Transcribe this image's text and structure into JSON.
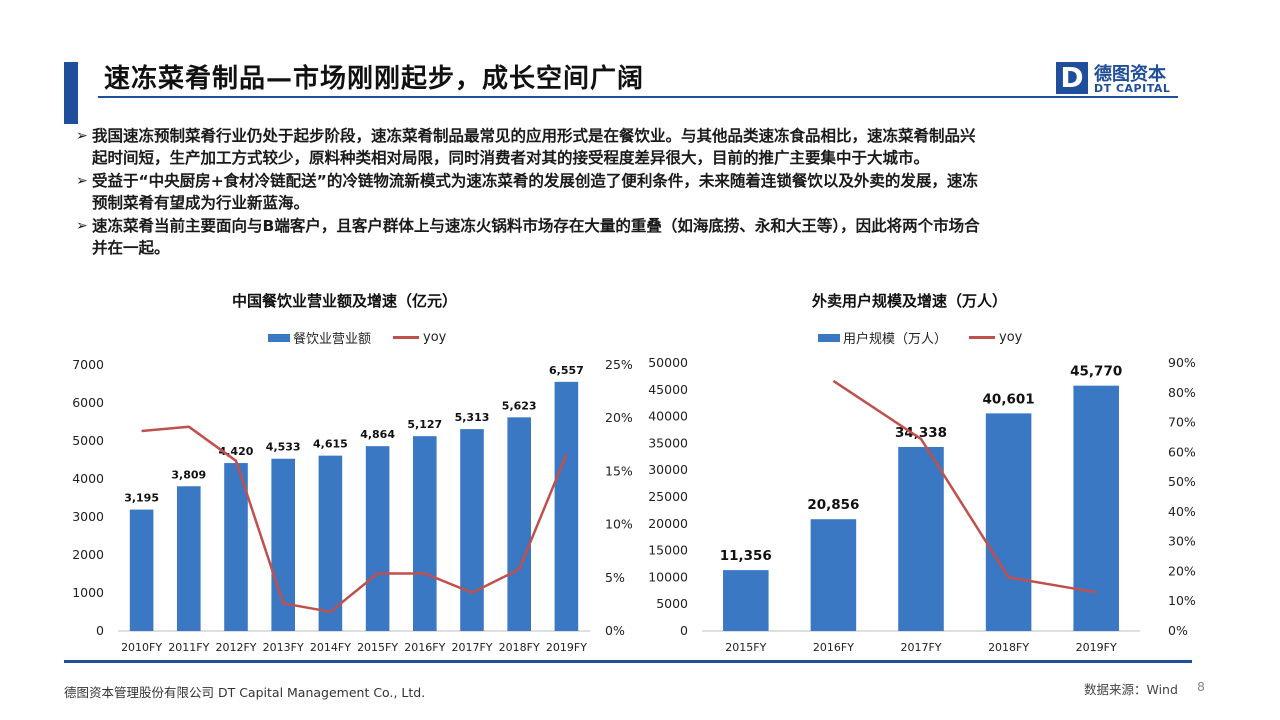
{
  "title": "速冻菜肴制品—市场刚刚起步，成长空间广阔",
  "logo": {
    "mark": "D",
    "cn": "德图资本",
    "en": "DT CAPITAL"
  },
  "bullets": [
    {
      "line1": "我国速冻预制菜肴行业仍处于起步阶段，速冻菜肴制品最常见的应用形式是在餐饮业。与其他品类速冻食品相比，速冻菜肴制品兴",
      "line2": "起时间短，生产加工方式较少，原料种类相对局限，同时消费者对其的接受程度差异很大，目前的推广主要集中于大城市。"
    },
    {
      "line1": "受益于“中央厨房+食材冷链配送”的冷链物流新模式为速冻菜肴的发展创造了便利条件，未来随着连锁餐饮以及外卖的发展，速冻",
      "line2": "预制菜肴有望成为行业新蓝海。"
    },
    {
      "line1": "速冻菜肴当前主要面向与B端客户，且客户群体上与速冻火锅料市场存在大量的重叠（如海底捞、永和大王等），因此将两个市场合",
      "line2": "并在一起。"
    }
  ],
  "colors": {
    "bar": "#3b78c3",
    "line": "#c0504d",
    "accent": "#1f4e9a"
  },
  "chart_data": [
    {
      "type": "bar",
      "title": "中国餐饮业营业额及增速（亿元）",
      "categories": [
        "2010FY",
        "2011FY",
        "2012FY",
        "2013FY",
        "2014FY",
        "2015FY",
        "2016FY",
        "2017FY",
        "2018FY",
        "2019FY"
      ],
      "series": [
        {
          "name": "餐饮业营业额",
          "kind": "bar",
          "axis": "left",
          "values": [
            3195,
            3809,
            4420,
            4533,
            4615,
            4864,
            5127,
            5313,
            5623,
            6557
          ],
          "labels": [
            "3,195",
            "3,809",
            "4,420",
            "4,533",
            "4,615",
            "4,864",
            "5,127",
            "5,313",
            "5,623",
            "6,557"
          ]
        },
        {
          "name": "yoy",
          "kind": "line",
          "axis": "right",
          "values": [
            0.188,
            0.192,
            0.16,
            0.026,
            0.018,
            0.054,
            0.054,
            0.036,
            0.058,
            0.166
          ]
        }
      ],
      "left_axis": {
        "min": 0,
        "max": 7000,
        "ticks": [
          "0",
          "1000",
          "2000",
          "3000",
          "4000",
          "5000",
          "6000",
          "7000"
        ]
      },
      "right_axis": {
        "min": 0,
        "max": 0.25,
        "ticks": [
          "0%",
          "5%",
          "10%",
          "15%",
          "20%",
          "25%"
        ]
      },
      "grid": false,
      "legend": "top-center"
    },
    {
      "type": "bar",
      "title": "外卖用户规模及增速（万人）",
      "categories": [
        "2015FY",
        "2016FY",
        "2017FY",
        "2018FY",
        "2019FY"
      ],
      "series": [
        {
          "name": "用户规模（万人）",
          "kind": "bar",
          "axis": "left",
          "values": [
            11356,
            20856,
            34338,
            40601,
            45770
          ],
          "labels": [
            "11,356",
            "20,856",
            "34,338",
            "40,601",
            "45,770"
          ]
        },
        {
          "name": "yoy",
          "kind": "line",
          "axis": "right",
          "values": [
            null,
            0.84,
            0.645,
            0.18,
            0.13
          ]
        }
      ],
      "left_axis": {
        "min": 0,
        "max": 50000,
        "ticks": [
          "0",
          "5000",
          "10000",
          "15000",
          "20000",
          "25000",
          "30000",
          "35000",
          "40000",
          "45000",
          "50000"
        ]
      },
      "right_axis": {
        "min": 0,
        "max": 0.9,
        "ticks": [
          "0%",
          "10%",
          "20%",
          "30%",
          "40%",
          "50%",
          "60%",
          "70%",
          "80%",
          "90%"
        ]
      },
      "grid": false,
      "legend": "top-center"
    }
  ],
  "footer": {
    "company": "德图资本管理股份有限公司  DT Capital Management Co., Ltd.",
    "source": "数据来源：Wind",
    "page": "8"
  }
}
